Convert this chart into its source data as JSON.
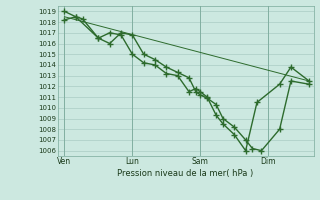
{
  "background_color": "#cce8e0",
  "grid_color": "#aaccc4",
  "line_color": "#2d6b2d",
  "marker_color": "#2d6b2d",
  "xlabel": "Pression niveau de la mer( hPa )",
  "ylim": [
    1005.5,
    1019.5
  ],
  "yticks": [
    1006,
    1007,
    1008,
    1009,
    1010,
    1011,
    1012,
    1013,
    1014,
    1015,
    1016,
    1017,
    1018,
    1019
  ],
  "xtick_labels": [
    "Ven",
    "Lun",
    "Sam",
    "Dim"
  ],
  "xtick_x": [
    0.0,
    3.0,
    6.0,
    9.0
  ],
  "vline_x": [
    0.0,
    3.0,
    6.0,
    9.0
  ],
  "xlim": [
    -0.3,
    11.0
  ],
  "series1_x": [
    0.0,
    0.5,
    0.8,
    1.5,
    2.0,
    2.5,
    3.0,
    3.5,
    4.0,
    4.5,
    5.0,
    5.5,
    5.8,
    6.0,
    6.3,
    6.7,
    7.0,
    7.5,
    8.0,
    8.5,
    9.5,
    10.0,
    10.8
  ],
  "series1_y": [
    1019.0,
    1018.5,
    1018.3,
    1016.5,
    1017.0,
    1016.8,
    1015.0,
    1014.2,
    1014.0,
    1013.2,
    1013.0,
    1011.5,
    1011.8,
    1011.5,
    1011.0,
    1009.3,
    1008.5,
    1007.5,
    1006.0,
    1010.5,
    1012.2,
    1013.8,
    1012.5
  ],
  "series2_x": [
    0.0,
    0.5,
    1.5,
    2.0,
    2.5,
    3.0,
    3.5,
    4.0,
    4.5,
    5.0,
    5.5,
    5.8,
    6.0,
    6.3,
    6.7,
    7.0,
    7.5,
    8.0,
    8.3,
    8.7,
    9.5,
    10.0,
    10.8
  ],
  "series2_y": [
    1018.2,
    1018.5,
    1016.5,
    1016.0,
    1017.0,
    1016.8,
    1015.0,
    1014.5,
    1013.8,
    1013.3,
    1012.8,
    1011.5,
    1011.2,
    1010.9,
    1010.3,
    1009.0,
    1008.2,
    1007.0,
    1006.2,
    1006.0,
    1008.0,
    1012.5,
    1012.2
  ],
  "series3_x": [
    0.0,
    10.8
  ],
  "series3_y": [
    1018.5,
    1012.5
  ]
}
